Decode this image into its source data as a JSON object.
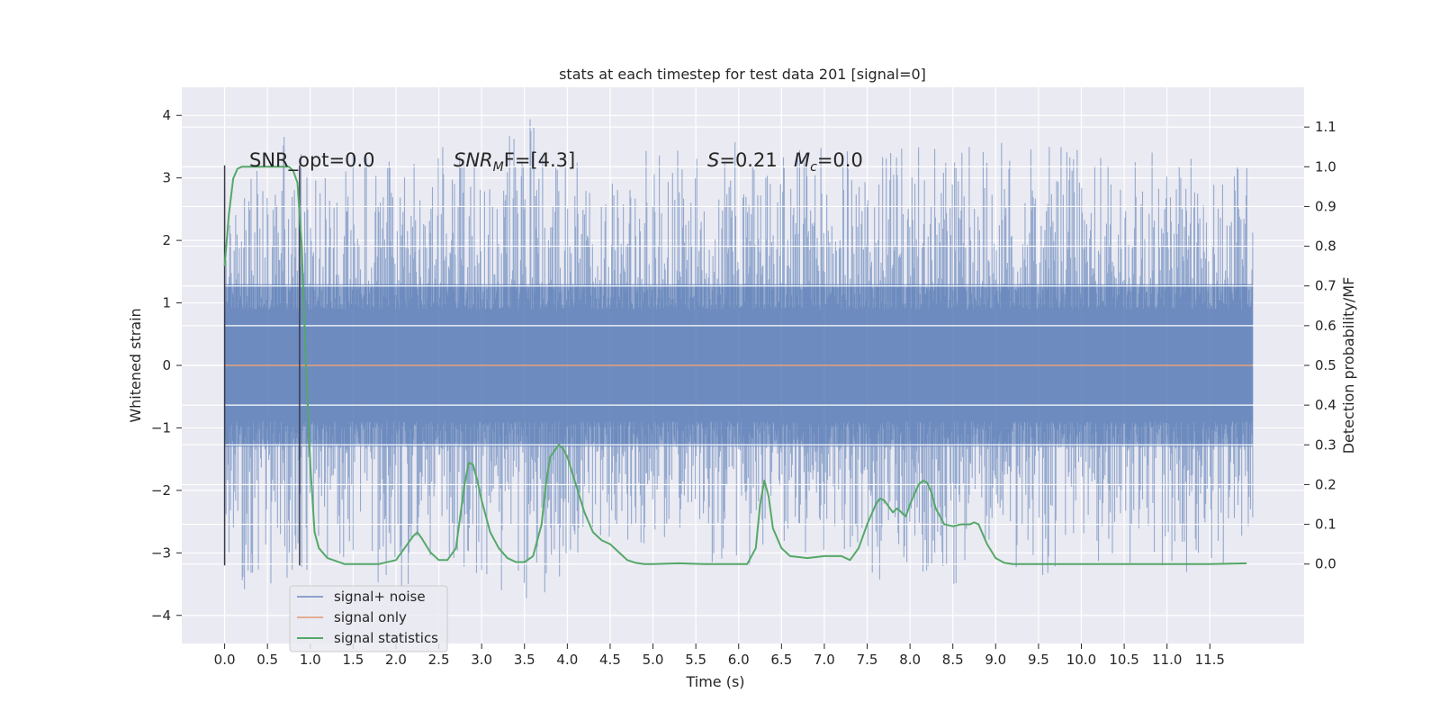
{
  "chart_data": {
    "type": "line",
    "title": "stats at each timestep for test data 201 [signal=0]",
    "xlabel": "Time (s)",
    "ylabel_left": "Whitened strain",
    "ylabel_right": "Detection probability/MF",
    "xlim": [
      -0.5,
      12.6
    ],
    "ylim_left": [
      -4.45,
      4.45
    ],
    "ylim_right": [
      -0.2,
      1.2
    ],
    "x_ticks": [
      0.0,
      0.5,
      1.0,
      1.5,
      2.0,
      2.5,
      3.0,
      3.5,
      4.0,
      4.5,
      5.0,
      5.5,
      6.0,
      6.5,
      7.0,
      7.5,
      8.0,
      8.5,
      9.0,
      9.5,
      10.0,
      10.5,
      11.0,
      11.5
    ],
    "x_tick_labels": [
      "0.0",
      "0.5",
      "1.0",
      "1.5",
      "2.0",
      "2.5",
      "3.0",
      "3.5",
      "4.0",
      "4.5",
      "5.0",
      "5.5",
      "6.0",
      "6.5",
      "7.0",
      "7.5",
      "8.0",
      "8.5",
      "9.0",
      "9.5",
      "10.0",
      "10.5",
      "11.0",
      "11.5"
    ],
    "y_left_ticks": [
      4,
      3,
      2,
      1,
      0,
      -1,
      -2,
      -3,
      -4
    ],
    "y_left_tick_labels": [
      "4",
      "3",
      "2",
      "1",
      "0",
      "−1",
      "−2",
      "−3",
      "−4"
    ],
    "y_right_ticks": [
      1.1,
      1.0,
      0.9,
      0.8,
      0.7,
      0.6,
      0.5,
      0.4,
      0.3,
      0.2,
      0.1,
      0.0
    ],
    "y_right_tick_labels": [
      "1.1",
      "1.0",
      "0.9",
      "0.8",
      "0.7",
      "0.6",
      "0.5",
      "0.4",
      "0.3",
      "0.2",
      "0.1",
      "0.0"
    ],
    "grid": true,
    "legend_position": "lower-left",
    "annotations": {
      "snr_opt": "SNR_opt=0.0",
      "snr_mf_sym": "SNR",
      "snr_mf_sub": "M",
      "snr_mf_rest": "F=[4.3]",
      "s_sym": "S",
      "s_rest": "=0.21",
      "mc_sym": "M",
      "mc_sub": "c",
      "mc_rest": "=0.0"
    },
    "vertical_markers_x": [
      0.0,
      0.875
    ],
    "series": [
      {
        "name": "signal+ noise",
        "color": "#4c72b0",
        "axis": "left",
        "x_range": [
          0.0,
          12.0
        ],
        "band_1sigma": [
          -1.0,
          1.0
        ],
        "upper_envelope": [
          [
            0.0,
            3.2
          ],
          [
            0.1,
            2.9
          ],
          [
            0.3,
            3.1
          ],
          [
            0.8,
            4.0
          ],
          [
            1.0,
            2.9
          ],
          [
            1.5,
            3.5
          ],
          [
            2.0,
            3.3
          ],
          [
            2.5,
            3.6
          ],
          [
            2.9,
            3.3
          ],
          [
            3.5,
            4.05
          ],
          [
            4.0,
            3.3
          ],
          [
            4.5,
            3.2
          ],
          [
            5.0,
            3.5
          ],
          [
            5.5,
            3.4
          ],
          [
            6.0,
            3.6
          ],
          [
            6.5,
            3.5
          ],
          [
            7.0,
            3.6
          ],
          [
            7.5,
            3.4
          ],
          [
            8.0,
            3.5
          ],
          [
            8.5,
            3.5
          ],
          [
            9.0,
            3.6
          ],
          [
            9.5,
            3.5
          ],
          [
            10.0,
            3.5
          ],
          [
            10.5,
            3.3
          ],
          [
            11.0,
            3.5
          ],
          [
            11.5,
            3.2
          ],
          [
            12.0,
            3.35
          ]
        ],
        "lower_envelope": [
          [
            0.0,
            -3.2
          ],
          [
            0.2,
            -3.6
          ],
          [
            0.9,
            -3.4
          ],
          [
            1.5,
            -3.2
          ],
          [
            2.0,
            -3.8
          ],
          [
            2.5,
            -3.0
          ],
          [
            2.9,
            -3.5
          ],
          [
            3.35,
            -3.7
          ],
          [
            3.6,
            -4.05
          ],
          [
            4.0,
            -3.2
          ],
          [
            4.5,
            -2.8
          ],
          [
            5.0,
            -2.9
          ],
          [
            5.5,
            -2.9
          ],
          [
            6.0,
            -3.6
          ],
          [
            6.5,
            -3.0
          ],
          [
            7.0,
            -3.0
          ],
          [
            7.5,
            -3.3
          ],
          [
            7.75,
            -3.6
          ],
          [
            8.0,
            -3.2
          ],
          [
            8.35,
            -3.6
          ],
          [
            9.0,
            -3.2
          ],
          [
            9.6,
            -3.4
          ],
          [
            10.0,
            -3.1
          ],
          [
            10.5,
            -3.2
          ],
          [
            11.0,
            -3.5
          ],
          [
            11.5,
            -3.5
          ],
          [
            12.0,
            -2.7
          ]
        ]
      },
      {
        "name": "signal only",
        "color": "#dd8452",
        "axis": "left",
        "x": [
          0.0,
          12.0
        ],
        "y": [
          0.0,
          0.0
        ]
      },
      {
        "name": "signal statistics",
        "color": "#55a868",
        "axis": "right",
        "x": [
          0.0,
          0.05,
          0.1,
          0.15,
          0.2,
          0.3,
          0.4,
          0.5,
          0.6,
          0.7,
          0.75,
          0.8,
          0.85,
          0.9,
          0.95,
          1.0,
          1.05,
          1.1,
          1.2,
          1.4,
          1.6,
          1.8,
          2.0,
          2.1,
          2.2,
          2.25,
          2.3,
          2.4,
          2.5,
          2.6,
          2.7,
          2.8,
          2.85,
          2.9,
          2.95,
          3.0,
          3.1,
          3.2,
          3.3,
          3.4,
          3.5,
          3.6,
          3.7,
          3.75,
          3.8,
          3.9,
          3.95,
          4.0,
          4.1,
          4.2,
          4.3,
          4.4,
          4.5,
          4.6,
          4.7,
          4.8,
          4.9,
          5.0,
          5.3,
          5.6,
          6.0,
          6.1,
          6.2,
          6.25,
          6.3,
          6.35,
          6.4,
          6.5,
          6.6,
          6.8,
          7.0,
          7.2,
          7.3,
          7.4,
          7.5,
          7.6,
          7.65,
          7.7,
          7.8,
          7.85,
          7.9,
          7.95,
          8.0,
          8.1,
          8.15,
          8.2,
          8.25,
          8.3,
          8.4,
          8.5,
          8.6,
          8.7,
          8.75,
          8.8,
          8.9,
          9.0,
          9.1,
          9.2,
          9.5,
          10.0,
          10.5,
          11.0,
          11.5,
          11.93
        ],
        "y": [
          0.75,
          0.88,
          0.97,
          0.995,
          1.0,
          1.0,
          1.0,
          1.0,
          1.0,
          1.0,
          1.0,
          0.99,
          0.96,
          0.8,
          0.5,
          0.25,
          0.08,
          0.04,
          0.015,
          0.0,
          0.0,
          0.0,
          0.01,
          0.04,
          0.07,
          0.08,
          0.065,
          0.03,
          0.01,
          0.01,
          0.04,
          0.2,
          0.255,
          0.25,
          0.21,
          0.16,
          0.08,
          0.04,
          0.015,
          0.005,
          0.005,
          0.02,
          0.1,
          0.2,
          0.27,
          0.3,
          0.29,
          0.27,
          0.2,
          0.13,
          0.08,
          0.06,
          0.05,
          0.03,
          0.01,
          0.003,
          0.0,
          0.0,
          0.002,
          0.0,
          0.0,
          0.0,
          0.04,
          0.15,
          0.21,
          0.17,
          0.09,
          0.04,
          0.02,
          0.015,
          0.02,
          0.02,
          0.01,
          0.04,
          0.1,
          0.15,
          0.165,
          0.16,
          0.13,
          0.14,
          0.13,
          0.12,
          0.15,
          0.2,
          0.21,
          0.205,
          0.18,
          0.14,
          0.1,
          0.095,
          0.1,
          0.1,
          0.105,
          0.1,
          0.05,
          0.015,
          0.003,
          0.0,
          0.0,
          0.0,
          0.0,
          0.0,
          0.0,
          0.002
        ]
      }
    ]
  }
}
